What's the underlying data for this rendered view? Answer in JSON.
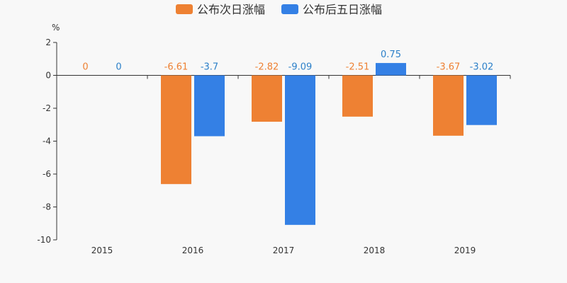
{
  "chart_data": {
    "type": "bar",
    "y_unit": "%",
    "categories": [
      "2015",
      "2016",
      "2017",
      "2018",
      "2019"
    ],
    "series": [
      {
        "name": "公布次日涨幅",
        "values": [
          0,
          -6.61,
          -2.82,
          -2.51,
          -3.67
        ],
        "labels": [
          "0",
          "-6.61",
          "-2.82",
          "-2.51",
          "-3.67"
        ],
        "color": "#ee8133"
      },
      {
        "name": "公布后五日涨幅",
        "values": [
          0,
          -3.7,
          -9.09,
          0.75,
          -3.02
        ],
        "labels": [
          "0",
          "-3.7",
          "-9.09",
          "0.75",
          "-3.02"
        ],
        "color": "#3480e5"
      }
    ],
    "ylim": [
      -10,
      2
    ],
    "yticks": [
      2,
      0,
      -2,
      -4,
      -6,
      -8,
      -10
    ],
    "ytick_labels": [
      "2",
      "0",
      "-2",
      "-4",
      "-6",
      "-8",
      "-10"
    ],
    "legend_position": "top",
    "grid": false,
    "label_colors": [
      "#ee8133",
      "#2c80c9"
    ],
    "axis_color": "#333333"
  }
}
